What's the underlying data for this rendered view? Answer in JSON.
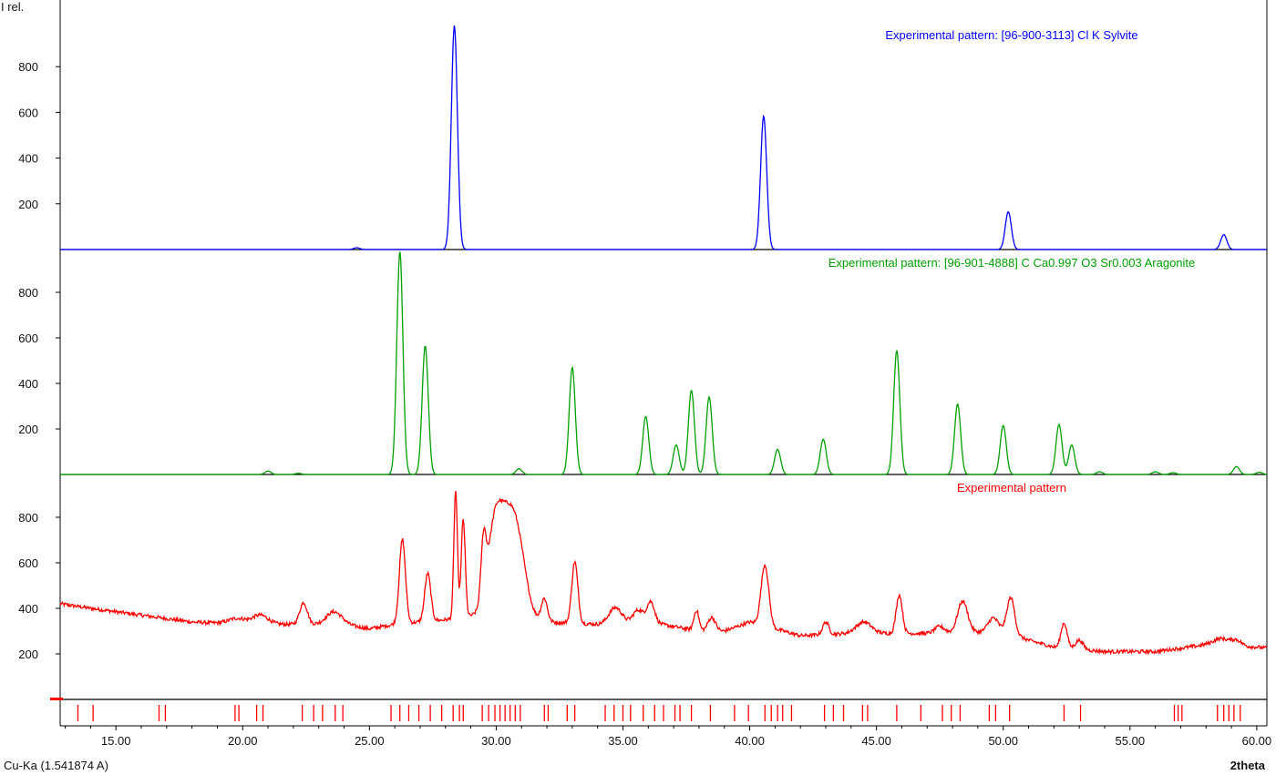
{
  "chart_data": {
    "type": "line",
    "title": "",
    "ylabel": "I rel.",
    "xlabel": "2theta",
    "footer_label": "Cu-Ka (1.541874 A)",
    "xlim": [
      12.8,
      60.4
    ],
    "x_ticks": [
      "15.00",
      "20.00",
      "25.00",
      "30.00",
      "35.00",
      "40.00",
      "45.00",
      "50.00",
      "55.00",
      "60.00"
    ],
    "x_tick_values": [
      15,
      20,
      25,
      30,
      35,
      40,
      45,
      50,
      55,
      60
    ],
    "panels": [
      {
        "id": "sylvite",
        "label": "Experimental pattern: [96-900-3113] Cl K Sylvite",
        "color": "#0000ff",
        "ylim": [
          0,
          980
        ],
        "y_ticks": [
          200,
          400,
          600,
          800
        ],
        "baseline": 0,
        "peak_width": 0.12,
        "peaks": [
          [
            24.5,
            8
          ],
          [
            28.35,
            980
          ],
          [
            40.55,
            585
          ],
          [
            50.2,
            165
          ],
          [
            58.7,
            65
          ]
        ]
      },
      {
        "id": "aragonite",
        "label": "Experimental pattern: [96-901-4888] C Ca0.997 O3 Sr0.003 Aragonite",
        "color": "#00a000",
        "ylim": [
          0,
          980
        ],
        "y_ticks": [
          200,
          400,
          600,
          800
        ],
        "baseline": 0,
        "peak_width": 0.12,
        "peaks": [
          [
            21.0,
            15
          ],
          [
            22.2,
            5
          ],
          [
            26.2,
            980
          ],
          [
            27.2,
            565
          ],
          [
            30.9,
            25
          ],
          [
            33.0,
            470
          ],
          [
            35.9,
            255
          ],
          [
            37.1,
            130
          ],
          [
            37.7,
            370
          ],
          [
            38.4,
            340
          ],
          [
            41.1,
            110
          ],
          [
            42.9,
            155
          ],
          [
            45.8,
            545
          ],
          [
            48.2,
            310
          ],
          [
            50.0,
            215
          ],
          [
            52.2,
            220
          ],
          [
            52.7,
            130
          ],
          [
            53.8,
            12
          ],
          [
            56.0,
            12
          ],
          [
            56.7,
            8
          ],
          [
            59.2,
            35
          ],
          [
            60.1,
            10
          ]
        ]
      },
      {
        "id": "experimental",
        "label": "Experimental pattern",
        "color": "#ff0000",
        "ylim": [
          0,
          980
        ],
        "y_ticks": [
          200,
          400,
          600,
          800
        ],
        "background": [
          [
            12.8,
            420
          ],
          [
            14,
            400
          ],
          [
            16,
            370
          ],
          [
            18,
            340
          ],
          [
            20,
            330
          ],
          [
            22,
            330
          ],
          [
            24,
            330
          ],
          [
            25,
            310
          ],
          [
            26,
            330
          ],
          [
            28,
            350
          ],
          [
            30,
            380
          ],
          [
            32,
            340
          ],
          [
            34,
            330
          ],
          [
            36,
            340
          ],
          [
            38,
            300
          ],
          [
            39,
            300
          ],
          [
            40,
            340
          ],
          [
            42,
            280
          ],
          [
            44,
            290
          ],
          [
            46,
            290
          ],
          [
            48,
            290
          ],
          [
            50,
            300
          ],
          [
            51,
            260
          ],
          [
            52,
            230
          ],
          [
            54,
            210
          ],
          [
            56,
            210
          ],
          [
            58,
            240
          ],
          [
            60,
            230
          ],
          [
            60.4,
            225
          ]
        ],
        "peaks": [
          [
            19.8,
            25,
            0.35
          ],
          [
            20.7,
            40,
            0.3
          ],
          [
            22.4,
            95,
            0.15
          ],
          [
            23.6,
            55,
            0.3
          ],
          [
            26.3,
            370,
            0.12
          ],
          [
            27.3,
            210,
            0.12
          ],
          [
            28.4,
            560,
            0.07
          ],
          [
            28.7,
            430,
            0.08
          ],
          [
            29.5,
            260,
            0.1
          ],
          [
            29.9,
            200,
            0.25
          ],
          [
            30.4,
            430,
            0.45
          ],
          [
            30.9,
            150,
            0.3
          ],
          [
            31.9,
            100,
            0.12
          ],
          [
            33.1,
            270,
            0.12
          ],
          [
            34.7,
            70,
            0.25
          ],
          [
            35.6,
            55,
            0.2
          ],
          [
            36.1,
            90,
            0.15
          ],
          [
            37.9,
            90,
            0.1
          ],
          [
            38.5,
            60,
            0.15
          ],
          [
            40.6,
            270,
            0.15
          ],
          [
            43.0,
            55,
            0.12
          ],
          [
            44.5,
            50,
            0.3
          ],
          [
            45.9,
            170,
            0.12
          ],
          [
            47.5,
            30,
            0.2
          ],
          [
            48.4,
            140,
            0.2
          ],
          [
            49.6,
            60,
            0.2
          ],
          [
            50.3,
            160,
            0.15
          ],
          [
            52.4,
            110,
            0.12
          ],
          [
            53.0,
            40,
            0.15
          ],
          [
            58.6,
            30,
            0.3
          ],
          [
            59.2,
            25,
            0.2
          ]
        ],
        "noise": 8
      }
    ],
    "reference_marks": {
      "color": "#ff0000",
      "positions": [
        13.5,
        14.1,
        16.7,
        16.95,
        19.7,
        19.85,
        20.55,
        20.8,
        22.35,
        22.8,
        23.15,
        23.65,
        23.95,
        25.85,
        26.2,
        26.55,
        26.95,
        27.4,
        27.85,
        28.3,
        28.55,
        28.7,
        29.45,
        29.7,
        29.95,
        30.15,
        30.35,
        30.55,
        30.75,
        30.95,
        31.9,
        32.05,
        32.8,
        33.1,
        34.3,
        34.65,
        35.0,
        35.3,
        35.8,
        36.25,
        36.6,
        37.05,
        37.25,
        37.7,
        38.45,
        39.4,
        39.95,
        40.6,
        40.85,
        41.1,
        41.3,
        41.65,
        42.95,
        43.3,
        43.7,
        44.45,
        44.65,
        45.8,
        46.75,
        47.6,
        47.95,
        48.3,
        49.45,
        49.7,
        50.25,
        52.4,
        53.05,
        56.75,
        56.9,
        57.05,
        58.45,
        58.7,
        58.9,
        59.1,
        59.35
      ]
    }
  }
}
